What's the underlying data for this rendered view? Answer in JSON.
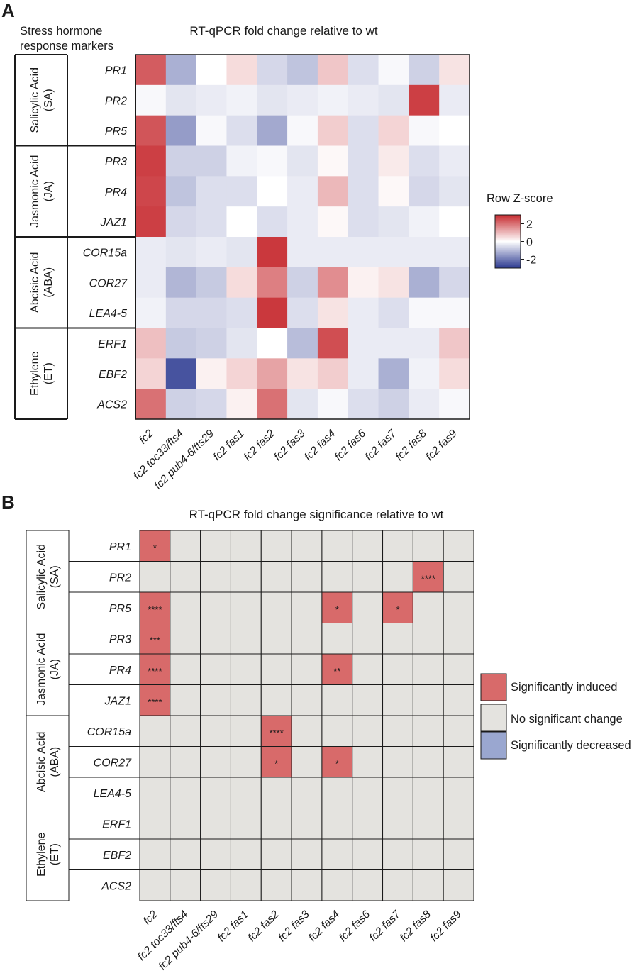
{
  "panelA": {
    "letter": "A",
    "title": "RT-qPCR fold change relative to wt",
    "row_header": [
      "Stress hormone",
      "response markers"
    ],
    "colorbar": {
      "title": "Row Z-score",
      "ticks": [
        2,
        0,
        -2
      ],
      "tick_labels": [
        "2",
        "0",
        "-2"
      ],
      "colors": {
        "high": "#c62a2f",
        "mid": "#ffffff",
        "low": "#2b3990"
      }
    }
  },
  "panelB": {
    "letter": "B",
    "title": "RT-qPCR fold change significance relative to wt",
    "legend": [
      {
        "label": "Significantly induced",
        "color": "#d86a6a"
      },
      {
        "label": "No significant change",
        "color": "#e4e3df"
      },
      {
        "label": "Significantly decreased",
        "color": "#9aa7d0"
      }
    ]
  },
  "chart_data": [
    {
      "type": "heatmap",
      "title": "RT-qPCR fold change relative to wt",
      "value_label": "Row Z-score",
      "vlim": [
        -3,
        3
      ],
      "columns": [
        "fc2",
        "fc2 toc33/fts4",
        "fc2 pub4-6/fts29",
        "fc2 fas1",
        "fc2 fas2",
        "fc2 fas3",
        "fc2 fas4",
        "fc2 fas6",
        "fc2 fas7",
        "fc2 fas8",
        "fc2 fas9"
      ],
      "groups": [
        {
          "label": [
            "Salicylic Acid",
            "(SA)"
          ],
          "rows": [
            "PR1",
            "PR2",
            "PR5"
          ]
        },
        {
          "label": [
            "Jasmonic Acid",
            "(JA)"
          ],
          "rows": [
            "PR3",
            "PR4",
            "JAZ1"
          ]
        },
        {
          "label": [
            "Abcisic Acid",
            "(ABA)"
          ],
          "rows": [
            "COR15a",
            "COR27",
            "LEA4-5"
          ]
        },
        {
          "label": [
            "Ethylene",
            "(ET)"
          ],
          "rows": [
            "ERF1",
            "EBF2",
            "ACS2"
          ]
        }
      ],
      "rows": [
        "PR1",
        "PR2",
        "PR5",
        "PR3",
        "PR4",
        "JAZ1",
        "COR15a",
        "COR27",
        "LEA4-5",
        "ERF1",
        "EBF2",
        "ACS2"
      ],
      "values": [
        [
          2.3,
          -1.2,
          0.0,
          0.5,
          -0.6,
          -0.9,
          0.8,
          -0.5,
          -0.1,
          -0.7,
          0.4
        ],
        [
          -0.1,
          -0.4,
          -0.3,
          -0.2,
          -0.4,
          -0.3,
          -0.2,
          -0.3,
          -0.4,
          2.7,
          -0.3
        ],
        [
          2.4,
          -1.5,
          -0.1,
          -0.5,
          -1.3,
          -0.1,
          0.7,
          -0.5,
          0.6,
          -0.1,
          0.0
        ],
        [
          2.7,
          -0.7,
          -0.7,
          -0.2,
          -0.1,
          -0.4,
          0.1,
          -0.5,
          0.3,
          -0.5,
          -0.3
        ],
        [
          2.6,
          -0.9,
          -0.5,
          -0.5,
          0.0,
          -0.3,
          1.0,
          -0.5,
          0.1,
          -0.6,
          -0.4
        ],
        [
          2.7,
          -0.6,
          -0.5,
          0.0,
          -0.5,
          -0.3,
          0.1,
          -0.5,
          -0.4,
          -0.2,
          0.0
        ],
        [
          -0.3,
          -0.4,
          -0.3,
          -0.4,
          2.8,
          -0.3,
          -0.3,
          -0.3,
          -0.3,
          -0.3,
          -0.3
        ],
        [
          -0.3,
          -1.1,
          -0.8,
          0.5,
          1.8,
          -0.7,
          1.6,
          0.2,
          0.4,
          -1.2,
          -0.6
        ],
        [
          -0.2,
          -0.6,
          -0.6,
          -0.5,
          2.8,
          -0.5,
          0.4,
          -0.3,
          -0.5,
          -0.1,
          -0.1
        ],
        [
          0.9,
          -0.8,
          -0.7,
          -0.4,
          0.0,
          -1.0,
          2.5,
          -0.3,
          -0.3,
          -0.3,
          0.8
        ],
        [
          0.6,
          -2.6,
          0.2,
          0.6,
          1.3,
          0.4,
          0.7,
          -0.3,
          -1.2,
          -0.2,
          0.5
        ],
        [
          2.0,
          -0.7,
          -0.6,
          0.2,
          2.0,
          -0.4,
          -0.1,
          -0.5,
          -0.7,
          -0.3,
          -0.1
        ]
      ]
    },
    {
      "type": "table",
      "title": "RT-qPCR fold change significance relative to wt",
      "columns": [
        "fc2",
        "fc2 toc33/fts4",
        "fc2 pub4-6/fts29",
        "fc2 fas1",
        "fc2 fas2",
        "fc2 fas3",
        "fc2 fas4",
        "fc2 fas6",
        "fc2 fas7",
        "fc2 fas8",
        "fc2 fas9"
      ],
      "groups": [
        {
          "label": [
            "Salicylic Acid",
            "(SA)"
          ],
          "rows": [
            "PR1",
            "PR2",
            "PR5"
          ]
        },
        {
          "label": [
            "Jasmonic Acid",
            "(JA)"
          ],
          "rows": [
            "PR3",
            "PR4",
            "JAZ1"
          ]
        },
        {
          "label": [
            "Abcisic Acid",
            "(ABA)"
          ],
          "rows": [
            "COR15a",
            "COR27",
            "LEA4-5"
          ]
        },
        {
          "label": [
            "Ethylene",
            "(ET)"
          ],
          "rows": [
            "ERF1",
            "EBF2",
            "ACS2"
          ]
        }
      ],
      "rows": [
        "PR1",
        "PR2",
        "PR5",
        "PR3",
        "PR4",
        "JAZ1",
        "COR15a",
        "COR27",
        "LEA4-5",
        "ERF1",
        "EBF2",
        "ACS2"
      ],
      "categories": [
        "none",
        "induced",
        "decreased"
      ],
      "significant_cells": [
        {
          "row": "PR1",
          "column": "fc2",
          "status": "induced",
          "label": "*"
        },
        {
          "row": "PR2",
          "column": "fc2 fas8",
          "status": "induced",
          "label": "****"
        },
        {
          "row": "PR5",
          "column": "fc2",
          "status": "induced",
          "label": "****"
        },
        {
          "row": "PR5",
          "column": "fc2 fas4",
          "status": "induced",
          "label": "*"
        },
        {
          "row": "PR5",
          "column": "fc2 fas7",
          "status": "induced",
          "label": "*"
        },
        {
          "row": "PR3",
          "column": "fc2",
          "status": "induced",
          "label": "***"
        },
        {
          "row": "PR4",
          "column": "fc2",
          "status": "induced",
          "label": "****"
        },
        {
          "row": "PR4",
          "column": "fc2 fas4",
          "status": "induced",
          "label": "**"
        },
        {
          "row": "JAZ1",
          "column": "fc2",
          "status": "induced",
          "label": "****"
        },
        {
          "row": "COR15a",
          "column": "fc2 fas2",
          "status": "induced",
          "label": "****"
        },
        {
          "row": "COR27",
          "column": "fc2 fas2",
          "status": "induced",
          "label": "*"
        },
        {
          "row": "COR27",
          "column": "fc2 fas4",
          "status": "induced",
          "label": "*"
        }
      ]
    }
  ]
}
